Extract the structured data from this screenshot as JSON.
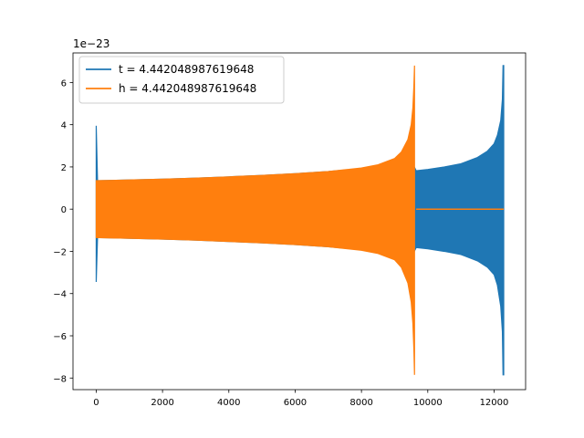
{
  "chart_data": {
    "type": "line",
    "title": "",
    "xlabel": "",
    "ylabel": "",
    "y_offset_label": "1e−23",
    "xlim": [
      -700,
      12950
    ],
    "ylim": [
      -8.55,
      7.4
    ],
    "xticks": [
      0,
      2000,
      4000,
      6000,
      8000,
      10000,
      12000
    ],
    "xtick_labels": [
      "0",
      "2000",
      "4000",
      "6000",
      "8000",
      "10000",
      "12000"
    ],
    "yticks": [
      -8,
      -6,
      -4,
      -2,
      0,
      2,
      4,
      6
    ],
    "ytick_labels": [
      "−8",
      "−6",
      "−4",
      "−2",
      "0",
      "2",
      "4",
      "6"
    ],
    "grid": false,
    "legend_position": "upper-left",
    "series": [
      {
        "name": "t = 4.442048987619648",
        "color": "#1f77b4",
        "envelope": {
          "x": [
            0,
            40,
            120,
            1000,
            2000,
            3000,
            4000,
            5000,
            6000,
            7000,
            8000,
            9000,
            9600,
            9650,
            10000,
            10500,
            11000,
            11500,
            11800,
            12000,
            12100,
            12200,
            12250,
            12270,
            12290
          ],
          "upper": [
            3.95,
            1.35,
            1.35,
            1.38,
            1.42,
            1.47,
            1.53,
            1.6,
            1.68,
            1.78,
            1.92,
            1.95,
            1.98,
            1.82,
            1.88,
            2.0,
            2.15,
            2.45,
            2.75,
            3.1,
            3.5,
            4.2,
            5.2,
            6.8,
            6.8
          ],
          "lower": [
            -3.45,
            -1.35,
            -1.35,
            -1.38,
            -1.42,
            -1.47,
            -1.53,
            -1.6,
            -1.68,
            -1.78,
            -1.92,
            -1.95,
            -1.98,
            -1.82,
            -1.88,
            -2.0,
            -2.15,
            -2.45,
            -2.75,
            -3.1,
            -3.6,
            -4.6,
            -5.8,
            -7.85,
            -7.85
          ]
        }
      },
      {
        "name": "h = 4.442048987619648",
        "color": "#ff7f0e",
        "envelope": {
          "x": [
            0,
            40,
            1000,
            2000,
            3000,
            4000,
            5000,
            6000,
            7000,
            8000,
            8500,
            9000,
            9200,
            9400,
            9500,
            9550,
            9580,
            9600
          ],
          "upper": [
            1.35,
            1.35,
            1.38,
            1.42,
            1.47,
            1.53,
            1.6,
            1.68,
            1.78,
            1.95,
            2.1,
            2.4,
            2.7,
            3.3,
            4.0,
            4.8,
            5.8,
            6.8
          ],
          "lower": [
            -1.35,
            -1.35,
            -1.38,
            -1.42,
            -1.47,
            -1.53,
            -1.6,
            -1.68,
            -1.78,
            -1.95,
            -2.1,
            -2.4,
            -2.75,
            -3.5,
            -4.4,
            -5.4,
            -6.6,
            -7.85
          ]
        },
        "flat_segment": {
          "x": [
            9650,
            12290
          ],
          "y": 0
        }
      }
    ]
  }
}
